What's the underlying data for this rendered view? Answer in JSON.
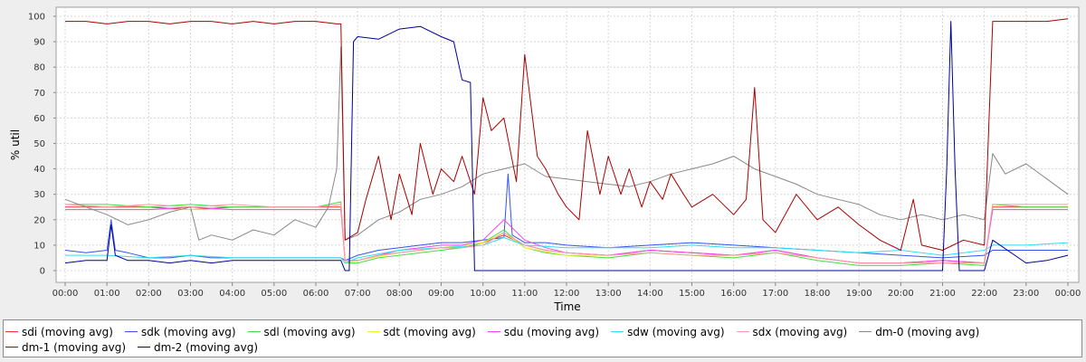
{
  "chart_data": {
    "type": "line",
    "title": "",
    "xlabel": "Time",
    "ylabel": "% util",
    "ylim": [
      0,
      100
    ],
    "yticks": [
      "0",
      "10",
      "20",
      "30",
      "40",
      "50",
      "60",
      "70",
      "80",
      "90",
      "100"
    ],
    "xticks": [
      "00:00",
      "01:00",
      "02:00",
      "03:00",
      "04:00",
      "05:00",
      "06:00",
      "07:00",
      "08:00",
      "09:00",
      "10:00",
      "11:00",
      "12:00",
      "13:00",
      "14:00",
      "15:00",
      "16:00",
      "17:00",
      "18:00",
      "19:00",
      "20:00",
      "21:00",
      "22:00",
      "23:00",
      "00:00"
    ],
    "xlim_hours": [
      0,
      24
    ],
    "grid": true,
    "legend_position": "bottom",
    "series": [
      {
        "name": "sdi (moving avg)",
        "color": "#ee3333",
        "x": [
          0,
          1,
          2,
          3,
          4,
          5,
          6,
          6.6,
          6.7,
          7,
          7.5,
          8,
          8.5,
          9,
          9.5,
          10,
          10.5,
          11,
          11.5,
          12,
          13,
          14,
          15,
          16,
          17,
          18,
          19,
          20,
          21,
          22,
          22.2,
          23,
          24
        ],
        "y": [
          25,
          25,
          25,
          24,
          25,
          25,
          25,
          25,
          4,
          4,
          6,
          7,
          8,
          9,
          9,
          11,
          14,
          10,
          8,
          7,
          6,
          8,
          7,
          6,
          8,
          5,
          3,
          3,
          4,
          3,
          25,
          25,
          25
        ]
      },
      {
        "name": "sdk (moving avg)",
        "color": "#3355ee",
        "x": [
          0,
          0.5,
          1,
          1.1,
          1.2,
          1.5,
          2,
          2.5,
          3,
          3.5,
          4,
          4.5,
          5,
          5.5,
          6,
          6.6,
          6.7,
          7,
          7.5,
          8,
          8.5,
          9,
          9.5,
          10,
          10.5,
          10.6,
          10.7,
          11,
          11.5,
          12,
          13,
          14,
          15,
          16,
          17,
          18,
          19,
          20,
          21,
          22,
          22.2,
          23,
          24
        ],
        "y": [
          8,
          7,
          8,
          20,
          8,
          7,
          5,
          5,
          6,
          5,
          5,
          5,
          5,
          5,
          5,
          5,
          4,
          6,
          8,
          9,
          10,
          11,
          11,
          12,
          13,
          38,
          14,
          11,
          11,
          10,
          9,
          10,
          11,
          10,
          9,
          8,
          7,
          6,
          5,
          6,
          8,
          8,
          8
        ]
      },
      {
        "name": "sdl (moving avg)",
        "color": "#44dd44",
        "x": [
          0,
          1,
          2,
          3,
          4,
          5,
          6,
          6.6,
          6.7,
          7,
          7.5,
          8,
          8.5,
          9,
          9.5,
          10,
          10.5,
          11,
          11.5,
          12,
          13,
          14,
          15,
          16,
          17,
          18,
          19,
          20,
          21,
          22,
          22.2,
          23,
          24
        ],
        "y": [
          26,
          26,
          25,
          26,
          25,
          25,
          25,
          27,
          3,
          3,
          5,
          6,
          7,
          8,
          9,
          11,
          16,
          9,
          7,
          6,
          5,
          7,
          6,
          5,
          7,
          4,
          2,
          2,
          3,
          2,
          26,
          25,
          25
        ]
      },
      {
        "name": "sdt (moving avg)",
        "color": "#eeee33",
        "x": [
          0,
          1,
          2,
          3,
          4,
          5,
          6,
          6.6,
          6.7,
          7,
          8,
          9,
          10,
          10.5,
          11,
          12,
          13,
          14,
          15,
          16,
          17,
          18,
          19,
          20,
          21,
          22,
          22.2,
          23,
          24
        ],
        "y": [
          24,
          24,
          24,
          24,
          24,
          24,
          24,
          24,
          3,
          4,
          7,
          9,
          11,
          15,
          9,
          6,
          6,
          7,
          6,
          6,
          7,
          5,
          3,
          3,
          3,
          3,
          24,
          24,
          24
        ]
      },
      {
        "name": "sdu (moving avg)",
        "color": "#ee44ee",
        "x": [
          0,
          1,
          2,
          3,
          4,
          5,
          6,
          6.6,
          6.7,
          7,
          7.5,
          8,
          8.5,
          9,
          9.5,
          10,
          10.5,
          11,
          11.5,
          12,
          13,
          14,
          15,
          16,
          17,
          18,
          19,
          20,
          21,
          22,
          22.2,
          23,
          24
        ],
        "y": [
          24,
          24,
          24,
          25,
          24,
          24,
          24,
          24,
          4,
          4,
          6,
          8,
          9,
          10,
          10,
          12,
          20,
          12,
          9,
          7,
          6,
          8,
          7,
          6,
          8,
          5,
          3,
          3,
          4,
          3,
          24,
          24,
          24
        ]
      },
      {
        "name": "sdw (moving avg)",
        "color": "#33ddee",
        "x": [
          0,
          1,
          2,
          3,
          4,
          5,
          6,
          6.6,
          6.7,
          7,
          8,
          9,
          10,
          10.5,
          11,
          12,
          13,
          14,
          15,
          16,
          17,
          18,
          19,
          20,
          21,
          22,
          22.2,
          23,
          24
        ],
        "y": [
          6,
          6,
          5,
          6,
          5,
          5,
          5,
          5,
          3,
          5,
          8,
          9,
          10,
          13,
          10,
          9,
          9,
          9,
          10,
          9,
          9,
          8,
          7,
          8,
          6,
          8,
          10,
          10,
          11
        ]
      },
      {
        "name": "sdx (moving avg)",
        "color": "#ff99aa",
        "x": [
          0,
          1,
          2,
          3,
          4,
          5,
          6,
          6.6,
          6.7,
          7,
          7.5,
          8,
          8.5,
          9,
          9.5,
          10,
          10.5,
          11,
          11.5,
          12,
          13,
          14,
          15,
          16,
          17,
          18,
          19,
          20,
          21,
          22,
          22.2,
          23,
          24
        ],
        "y": [
          26,
          25,
          26,
          25,
          26,
          25,
          25,
          26,
          4,
          4,
          6,
          7,
          8,
          9,
          9,
          10,
          15,
          10,
          8,
          7,
          6,
          7,
          6,
          6,
          7,
          5,
          3,
          3,
          3,
          3,
          26,
          26,
          26
        ]
      },
      {
        "name": "dm-0 (moving avg)",
        "color": "#888888",
        "x": [
          0,
          0.5,
          1,
          1.5,
          2,
          2.5,
          3,
          3.2,
          3.5,
          4,
          4.5,
          5,
          5.5,
          6,
          6.3,
          6.5,
          6.6,
          6.7,
          7,
          7.5,
          8,
          8.5,
          9,
          9.5,
          10,
          10.5,
          11,
          11.5,
          12,
          12.5,
          13,
          13.5,
          14,
          14.5,
          15,
          15.5,
          16,
          16.5,
          17,
          17.5,
          18,
          18.5,
          19,
          19.5,
          20,
          20.5,
          21,
          21.5,
          22,
          22.2,
          22.5,
          23,
          23.5,
          24
        ],
        "y": [
          28,
          25,
          22,
          18,
          20,
          23,
          25,
          12,
          14,
          12,
          16,
          14,
          20,
          17,
          25,
          40,
          88,
          12,
          14,
          20,
          23,
          28,
          30,
          33,
          38,
          40,
          42,
          37,
          36,
          35,
          34,
          33,
          35,
          38,
          40,
          42,
          45,
          40,
          37,
          34,
          30,
          28,
          26,
          22,
          20,
          22,
          20,
          22,
          20,
          46,
          38,
          42,
          36,
          30
        ]
      },
      {
        "name": "dm-1 (moving avg)",
        "color": "#aa0000",
        "x": [
          0,
          0.5,
          1,
          1.5,
          2,
          2.5,
          3,
          3.5,
          4,
          4.5,
          5,
          5.5,
          6,
          6.5,
          6.6,
          6.7,
          7,
          7.2,
          7.5,
          7.8,
          8,
          8.3,
          8.5,
          8.8,
          9,
          9.3,
          9.5,
          9.8,
          10,
          10.2,
          10.5,
          10.8,
          11,
          11.3,
          11.5,
          11.8,
          12,
          12.3,
          12.5,
          12.8,
          13,
          13.3,
          13.5,
          13.8,
          14,
          14.3,
          14.5,
          14.8,
          15,
          15.5,
          16,
          16.3,
          16.5,
          16.7,
          17,
          17.5,
          18,
          18.5,
          19,
          19.5,
          20,
          20.3,
          20.5,
          21,
          21.5,
          22,
          22.2,
          22.5,
          23,
          23.5,
          24
        ],
        "y": [
          98,
          98,
          97,
          98,
          98,
          97,
          98,
          98,
          97,
          98,
          97,
          98,
          98,
          97,
          97,
          12,
          15,
          28,
          45,
          20,
          38,
          22,
          50,
          30,
          40,
          35,
          45,
          30,
          68,
          55,
          60,
          35,
          85,
          45,
          40,
          30,
          25,
          20,
          55,
          30,
          45,
          30,
          40,
          25,
          35,
          28,
          38,
          30,
          25,
          30,
          22,
          28,
          72,
          20,
          15,
          30,
          20,
          25,
          18,
          12,
          8,
          28,
          10,
          8,
          12,
          10,
          98,
          98,
          98,
          98,
          99
        ]
      },
      {
        "name": "dm-2 (moving avg)",
        "color": "#000099",
        "x": [
          0,
          0.5,
          1,
          1.1,
          1.2,
          1.5,
          2,
          2.5,
          3,
          3.5,
          4,
          4.5,
          5,
          5.5,
          6,
          6.6,
          6.7,
          6.8,
          6.9,
          7,
          7.5,
          8,
          8.5,
          9,
          9.3,
          9.5,
          9.7,
          9.8,
          10,
          10.5,
          11,
          12,
          13,
          14,
          15,
          16,
          17,
          18,
          19,
          20,
          21,
          21.1,
          21.2,
          21.3,
          21.4,
          21.5,
          22,
          22.2,
          23,
          23.5,
          24
        ],
        "y": [
          3,
          4,
          4,
          18,
          6,
          4,
          4,
          3,
          4,
          3,
          4,
          4,
          4,
          4,
          4,
          4,
          0,
          0,
          90,
          92,
          91,
          95,
          96,
          92,
          90,
          75,
          74,
          0,
          0,
          0,
          0,
          0,
          0,
          0,
          0,
          0,
          0,
          0,
          0,
          0,
          0,
          40,
          98,
          40,
          0,
          0,
          0,
          12,
          3,
          4,
          6
        ]
      }
    ]
  }
}
